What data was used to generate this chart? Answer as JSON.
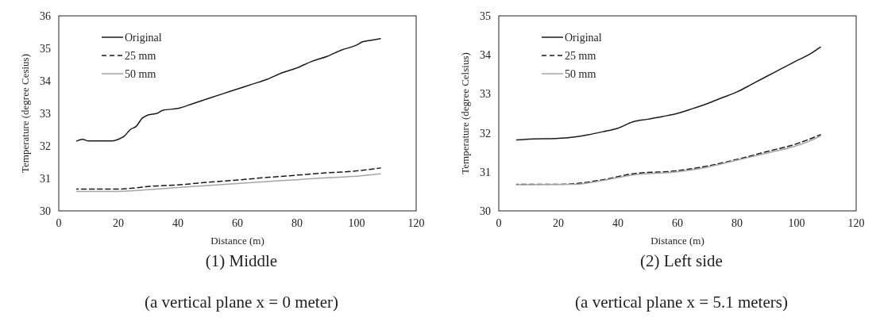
{
  "chart_data": [
    {
      "type": "line",
      "title": "(1) Middle",
      "subtitle": "(a vertical plane x = 0 meter)",
      "xlabel": "Distance (m)",
      "ylabel": "Temperature (degree Cesius)",
      "xlim": [
        0,
        120
      ],
      "xticks": [
        0,
        20,
        40,
        60,
        80,
        100,
        120
      ],
      "ylim": [
        30,
        36
      ],
      "yticks": [
        30,
        31,
        32,
        33,
        34,
        35,
        36
      ],
      "legend": "top left",
      "grid": false,
      "series": [
        {
          "name": "Original",
          "color": "#1a1a1a",
          "line_style": "solid",
          "x": [
            6,
            8,
            10,
            14,
            18,
            20,
            22,
            24,
            26,
            28,
            30,
            33,
            35,
            40,
            45,
            50,
            55,
            60,
            65,
            70,
            75,
            80,
            85,
            90,
            95,
            100,
            102,
            105,
            108
          ],
          "values": [
            32.15,
            32.2,
            32.15,
            32.15,
            32.15,
            32.2,
            32.3,
            32.5,
            32.6,
            32.85,
            32.95,
            33.0,
            33.1,
            33.15,
            33.3,
            33.45,
            33.6,
            33.75,
            33.9,
            34.05,
            34.25,
            34.4,
            34.6,
            34.75,
            34.95,
            35.1,
            35.2,
            35.25,
            35.3
          ]
        },
        {
          "name": "25 mm",
          "color": "#1a1a1a",
          "line_style": "dashed",
          "x": [
            6,
            20,
            25,
            30,
            40,
            50,
            60,
            70,
            80,
            90,
            100,
            108
          ],
          "values": [
            30.67,
            30.67,
            30.7,
            30.75,
            30.8,
            30.88,
            30.95,
            31.03,
            31.1,
            31.17,
            31.23,
            31.32
          ]
        },
        {
          "name": "50 mm",
          "color": "#a6a6a6",
          "line_style": "solid",
          "x": [
            6,
            20,
            30,
            40,
            50,
            60,
            70,
            80,
            90,
            100,
            108
          ],
          "values": [
            30.6,
            30.6,
            30.65,
            30.72,
            30.78,
            30.84,
            30.9,
            30.96,
            31.02,
            31.07,
            31.14
          ]
        }
      ]
    },
    {
      "type": "line",
      "title": "(2) Left side",
      "subtitle": "(a vertical plane x = 5.1 meters)",
      "xlabel": "Distance (m)",
      "ylabel": "Temperature (degree Celsius)",
      "xlim": [
        0,
        120
      ],
      "xticks": [
        0,
        20,
        40,
        60,
        80,
        100,
        120
      ],
      "ylim": [
        30,
        35
      ],
      "yticks": [
        30,
        31,
        32,
        33,
        34,
        35
      ],
      "legend": "top left",
      "grid": false,
      "series": [
        {
          "name": "Original",
          "color": "#1a1a1a",
          "line_style": "solid",
          "x": [
            6,
            10,
            20,
            26,
            30,
            35,
            40,
            45,
            50,
            55,
            60,
            65,
            70,
            75,
            80,
            85,
            90,
            95,
            100,
            104,
            108
          ],
          "values": [
            31.82,
            31.84,
            31.86,
            31.9,
            31.95,
            32.03,
            32.12,
            32.28,
            32.35,
            32.42,
            32.5,
            32.62,
            32.75,
            32.9,
            33.05,
            33.25,
            33.45,
            33.65,
            33.85,
            34.0,
            34.2
          ]
        },
        {
          "name": "25 mm",
          "color": "#1a1a1a",
          "line_style": "dashed",
          "x": [
            6,
            20,
            26,
            35,
            45,
            60,
            70,
            80,
            90,
            100,
            104,
            108
          ],
          "values": [
            30.68,
            30.68,
            30.7,
            30.8,
            30.95,
            31.03,
            31.15,
            31.32,
            31.52,
            31.72,
            31.83,
            31.95
          ]
        },
        {
          "name": "50 mm",
          "color": "#a6a6a6",
          "line_style": "solid",
          "x": [
            6,
            26,
            35,
            45,
            60,
            70,
            80,
            90,
            100,
            104,
            108
          ],
          "values": [
            30.67,
            30.68,
            30.78,
            30.92,
            31.0,
            31.12,
            31.3,
            31.48,
            31.67,
            31.78,
            31.92
          ]
        }
      ]
    }
  ]
}
